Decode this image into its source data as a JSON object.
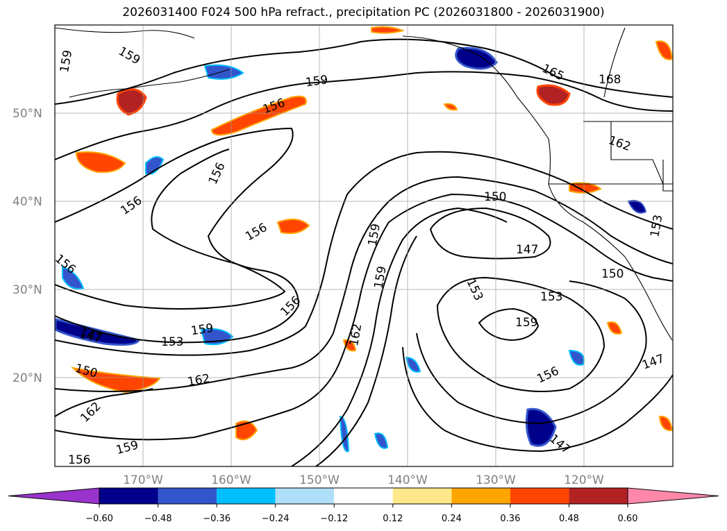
{
  "title": "2026031400 F024 500 hPa refract., precipitation PC (2026031800 - 2026031900)",
  "lon_labels": [
    "170°W",
    "160°W",
    "150°W",
    "140°W",
    "130°W",
    "120°W"
  ],
  "lat_labels": [
    "50°N",
    "40°N",
    "30°N",
    "20°N"
  ],
  "colorbar": {
    "colors": [
      "#9933cc",
      "#00008b",
      "#3355cc",
      "#00bfff",
      "#b0e0f8",
      "#ffffff",
      "#ffe88a",
      "#ffa500",
      "#ff4500",
      "#b22222",
      "#ff88aa"
    ],
    "tick_labels": [
      "−0.60",
      "−0.48",
      "−0.36",
      "−0.24",
      "−0.12",
      "0.12",
      "0.24",
      "0.36",
      "0.48",
      "0.60"
    ]
  },
  "contour_labels": [
    "159",
    "159",
    "159",
    "165",
    "168",
    "156",
    "156",
    "156",
    "156",
    "162",
    "150",
    "156",
    "147",
    "153",
    "159",
    "153",
    "153",
    "150",
    "159",
    "156",
    "162",
    "159",
    "147",
    "153",
    "147",
    "156",
    "150",
    "162",
    "159",
    "147",
    "156"
  ]
}
